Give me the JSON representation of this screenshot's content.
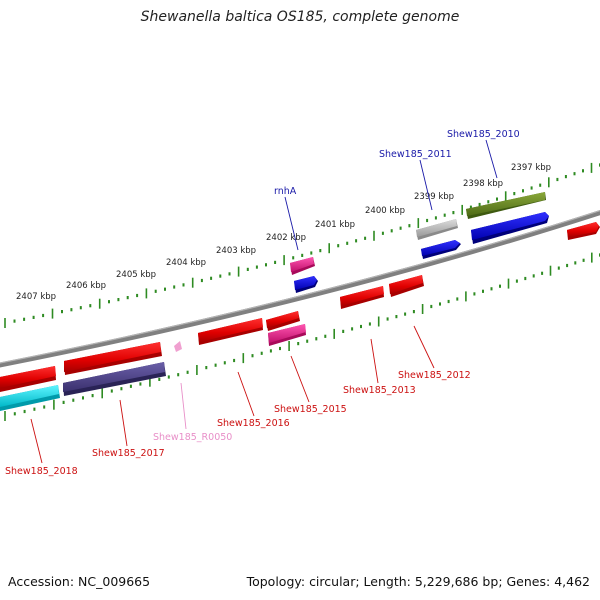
{
  "title": "Shewanella baltica OS185, complete genome",
  "footer": {
    "accession_label": "Accession:",
    "accession": "NC_009665",
    "topology_label": "Topology:",
    "topology": "circular",
    "length_label": "Length:",
    "length": "5,229,686 bp",
    "genes_label": "Genes:",
    "genes": "4,462"
  },
  "colors": {
    "backbone": "#808080",
    "tick_green": "#2e8b22",
    "label_blue": "#1a1aa8",
    "label_red": "#cc1111",
    "label_pink": "#e88fc8"
  },
  "ruler_labels": [
    "2397 kbp",
    "2398 kbp",
    "2399 kbp",
    "2400 kbp",
    "2401 kbp",
    "2402 kbp",
    "2403 kbp",
    "2404 kbp",
    "2405 kbp",
    "2406 kbp",
    "2407 kbp"
  ],
  "gene_labels": {
    "Shew185_2010": "Shew185_2010",
    "Shew185_2011": "Shew185_2011",
    "rnhA": "rnhA",
    "Shew185_2012": "Shew185_2012",
    "Shew185_2013": "Shew185_2013",
    "Shew185_2015": "Shew185_2015",
    "Shew185_2016": "Shew185_2016",
    "Shew185_R0050": "Shew185_R0050",
    "Shew185_2017": "Shew185_2017",
    "Shew185_2018": "Shew185_2018"
  }
}
